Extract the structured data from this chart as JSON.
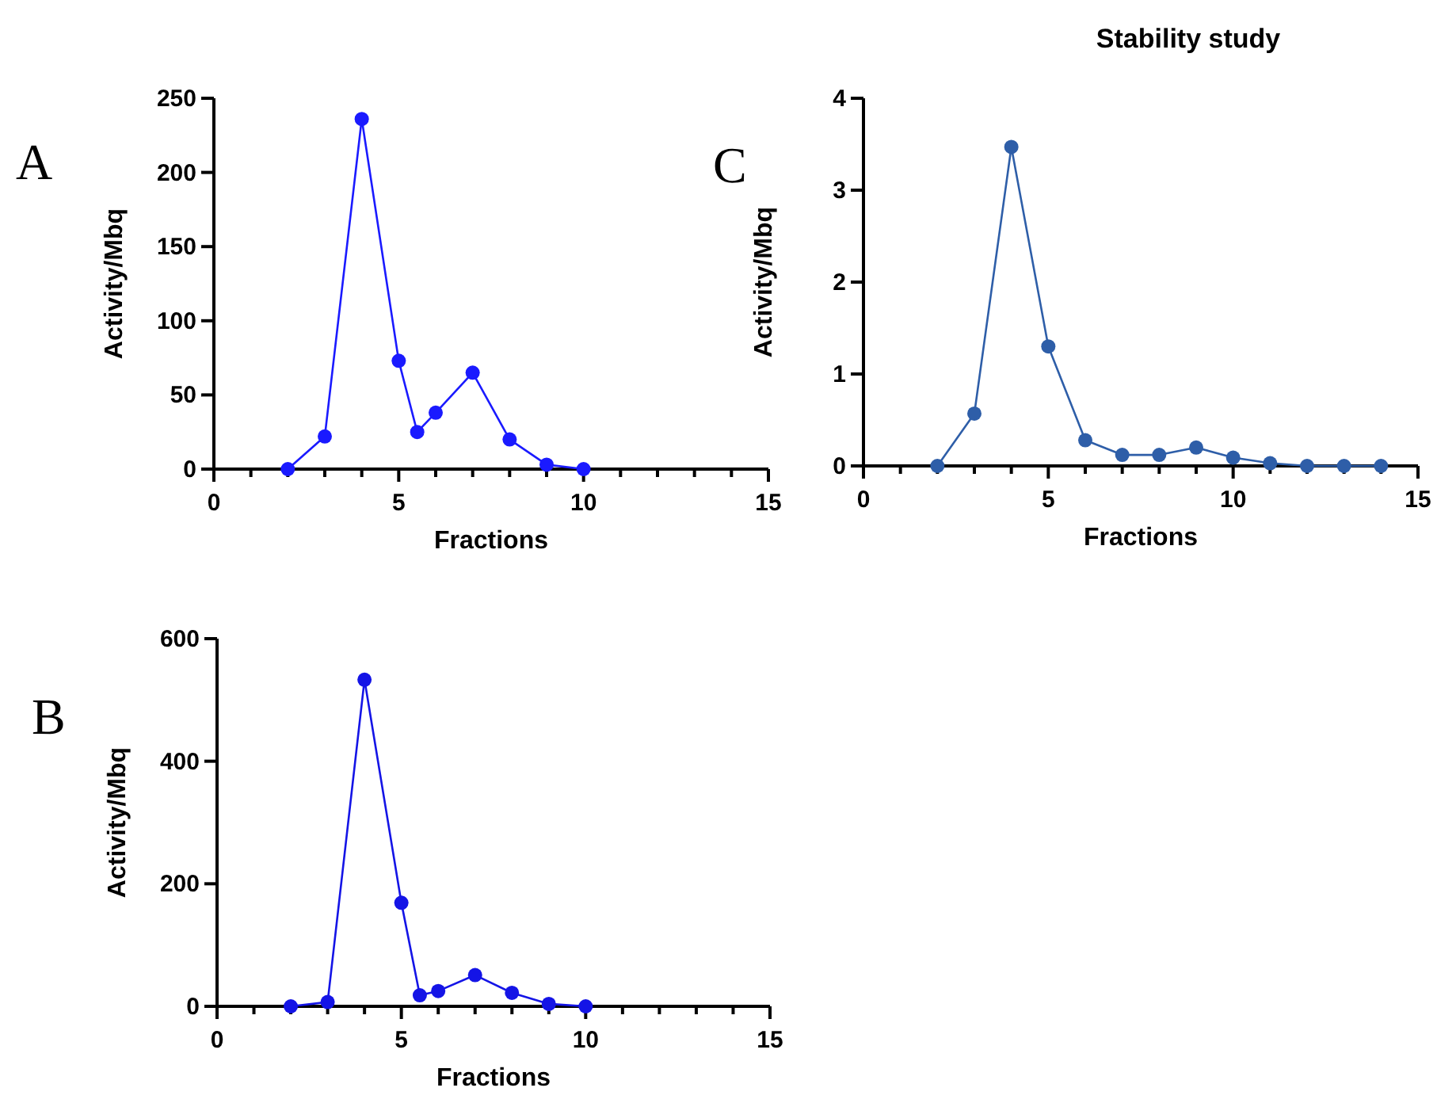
{
  "chart_data": [
    {
      "type": "line",
      "xlabel": "Fractions",
      "ylabel": "Activity/Mbq",
      "annotations": [
        "A"
      ],
      "x": [
        2,
        3,
        4,
        5,
        5.5,
        6,
        7,
        8,
        9,
        10
      ],
      "series": [
        {
          "color": "#1a1aff",
          "values": [
            0,
            22,
            236,
            73,
            25,
            38,
            65,
            20,
            3,
            0
          ]
        }
      ],
      "xlim": [
        0,
        15
      ],
      "ylim": [
        0,
        250
      ],
      "xticks": [
        0,
        {
          "value": 1,
          "label": null
        },
        {
          "value": 2,
          "label": null
        },
        {
          "value": 3,
          "label": null
        },
        {
          "value": 4,
          "label": null
        },
        5,
        {
          "value": 6,
          "label": null
        },
        {
          "value": 7,
          "label": null
        },
        {
          "value": 8,
          "label": null
        },
        {
          "value": 9,
          "label": null
        },
        10,
        {
          "value": 11,
          "label": null
        },
        {
          "value": 12,
          "label": null
        },
        {
          "value": 13,
          "label": null
        },
        {
          "value": 14,
          "label": null
        },
        15
      ],
      "yticks": [
        0,
        50,
        100,
        150,
        200,
        250
      ],
      "marker": "circle",
      "line_style": "solid"
    },
    {
      "type": "line",
      "title": "Stability study",
      "xlabel": "Fractions",
      "ylabel": "Activity/Mbq",
      "annotations": [
        "C"
      ],
      "x": [
        2,
        3,
        4,
        5,
        6,
        7,
        8,
        9,
        10,
        11,
        12,
        13,
        14
      ],
      "series": [
        {
          "color": "#2e5ea8",
          "values": [
            0,
            0.57,
            3.47,
            1.3,
            0.28,
            0.12,
            0.12,
            0.2,
            0.09,
            0.03,
            0,
            0,
            0
          ]
        }
      ],
      "xlim": [
        0,
        15
      ],
      "ylim": [
        0,
        4
      ],
      "xticks": [
        0,
        {
          "value": 1,
          "label": null
        },
        {
          "value": 2,
          "label": null
        },
        {
          "value": 3,
          "label": null
        },
        {
          "value": 4,
          "label": null
        },
        5,
        {
          "value": 6,
          "label": null
        },
        {
          "value": 7,
          "label": null
        },
        {
          "value": 8,
          "label": null
        },
        {
          "value": 9,
          "label": null
        },
        10,
        {
          "value": 11,
          "label": null
        },
        {
          "value": 12,
          "label": null
        },
        {
          "value": 13,
          "label": null
        },
        {
          "value": 14,
          "label": null
        },
        15
      ],
      "yticks": [
        0,
        1,
        2,
        3,
        4
      ],
      "marker": "circle",
      "line_style": "solid"
    },
    {
      "type": "line",
      "xlabel": "Fractions",
      "ylabel": "Activity/Mbq",
      "annotations": [
        "B"
      ],
      "x": [
        2,
        3,
        4,
        5,
        5.5,
        6,
        7,
        8,
        9,
        10
      ],
      "series": [
        {
          "color": "#1414e6",
          "values": [
            0,
            7,
            533,
            169,
            18,
            25,
            51,
            22,
            4,
            0
          ]
        }
      ],
      "xlim": [
        0,
        15
      ],
      "ylim": [
        0,
        600
      ],
      "xticks": [
        0,
        {
          "value": 1,
          "label": null
        },
        {
          "value": 2,
          "label": null
        },
        {
          "value": 3,
          "label": null
        },
        {
          "value": 4,
          "label": null
        },
        5,
        {
          "value": 6,
          "label": null
        },
        {
          "value": 7,
          "label": null
        },
        {
          "value": 8,
          "label": null
        },
        {
          "value": 9,
          "label": null
        },
        10,
        {
          "value": 11,
          "label": null
        },
        {
          "value": 12,
          "label": null
        },
        {
          "value": 13,
          "label": null
        },
        {
          "value": 14,
          "label": null
        },
        15
      ],
      "yticks": [
        0,
        200,
        400,
        600
      ],
      "marker": "circle",
      "line_style": "solid"
    }
  ]
}
